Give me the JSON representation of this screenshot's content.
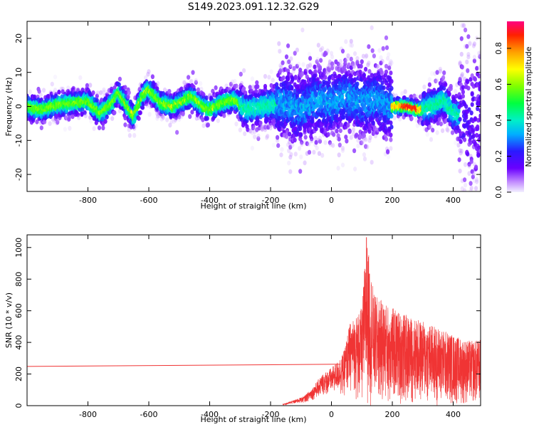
{
  "title": "S149.2023.091.12.32.G29",
  "chart_data": [
    {
      "type": "heatmap",
      "xlabel": "Height of straight line (km)",
      "ylabel": "Frequency (Hz)",
      "xlim": [
        -1000,
        490
      ],
      "ylim": [
        -25,
        25
      ],
      "xticks": [
        -800,
        -600,
        -400,
        -200,
        0,
        200,
        400
      ],
      "yticks": [
        -20,
        -10,
        0,
        10,
        20
      ],
      "colorbar": {
        "label": "Normalized spectral amplitude",
        "range": [
          0,
          0.95
        ],
        "ticks": [
          "0.0",
          "0.2",
          "0.4",
          "0.6",
          "0.8"
        ]
      },
      "ridge": [
        {
          "x": -1000,
          "f": 0
        },
        {
          "x": -950,
          "f": -1
        },
        {
          "x": -900,
          "f": 0.5
        },
        {
          "x": -850,
          "f": 1
        },
        {
          "x": -800,
          "f": 1.5
        },
        {
          "x": -760,
          "f": -2
        },
        {
          "x": -720,
          "f": 1
        },
        {
          "x": -700,
          "f": 4
        },
        {
          "x": -670,
          "f": 0
        },
        {
          "x": -650,
          "f": -3
        },
        {
          "x": -620,
          "f": 3
        },
        {
          "x": -600,
          "f": 5
        },
        {
          "x": -560,
          "f": 1
        },
        {
          "x": -520,
          "f": 0
        },
        {
          "x": -460,
          "f": 3
        },
        {
          "x": -420,
          "f": 0
        },
        {
          "x": -400,
          "f": -1
        },
        {
          "x": -360,
          "f": 1
        },
        {
          "x": -320,
          "f": 2
        },
        {
          "x": -280,
          "f": -1
        },
        {
          "x": -220,
          "f": 0
        },
        {
          "x": -150,
          "f": 1
        },
        {
          "x": -100,
          "f": -1
        },
        {
          "x": -50,
          "f": 2
        },
        {
          "x": 0,
          "f": 1
        },
        {
          "x": 50,
          "f": 3
        },
        {
          "x": 100,
          "f": 1
        },
        {
          "x": 150,
          "f": 2
        },
        {
          "x": 200,
          "f": 0
        },
        {
          "x": 250,
          "f": 0
        },
        {
          "x": 290,
          "f": -1
        },
        {
          "x": 330,
          "f": 0
        },
        {
          "x": 370,
          "f": 2
        },
        {
          "x": 400,
          "f": -2
        },
        {
          "x": 440,
          "f": -3
        }
      ]
    },
    {
      "type": "line",
      "xlabel": "Height of straight line (km)",
      "ylabel": "SNR (10 * v/v)",
      "xlim": [
        -1000,
        490
      ],
      "ylim": [
        0,
        1080
      ],
      "xticks": [
        -800,
        -600,
        -400,
        -200,
        0,
        200,
        400
      ],
      "yticks": [
        0,
        200,
        400,
        600,
        800,
        1000
      ],
      "color": "#f03434",
      "series": [
        {
          "values": [
            [
              -1000,
              248
            ],
            [
              -40,
              262
            ],
            [
              30,
              262
            ],
            [
              -160,
              10
            ],
            [
              -130,
              30
            ],
            [
              -90,
              60
            ],
            [
              -60,
              120
            ],
            [
              -30,
              200
            ],
            [
              0,
              240
            ],
            [
              20,
              280
            ],
            [
              40,
              340
            ],
            [
              60,
              520
            ],
            [
              100,
              620
            ],
            [
              115,
              1065
            ],
            [
              140,
              700
            ],
            [
              200,
              620
            ],
            [
              260,
              560
            ],
            [
              320,
              520
            ],
            [
              380,
              470
            ],
            [
              420,
              430
            ],
            [
              460,
              410
            ],
            [
              490,
              420
            ]
          ]
        }
      ]
    }
  ]
}
